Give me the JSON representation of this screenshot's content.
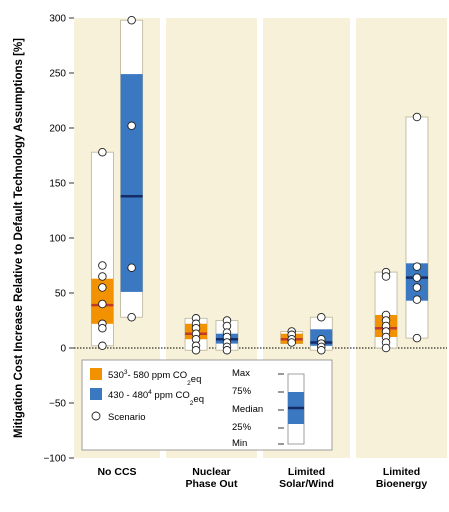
{
  "chart_data": {
    "type": "boxplot",
    "ylabel": "Mitigation Cost Increase Relative to Default Technology Assumptions [%]",
    "ylim": [
      -100,
      300
    ],
    "yticks": [
      -100,
      -50,
      0,
      50,
      100,
      150,
      200,
      250,
      300
    ],
    "categories": [
      "No CCS",
      "Nuclear Phase Out",
      "Limited Solar/Wind",
      "Limited Bioenergy"
    ],
    "category_lines": [
      [
        "No CCS"
      ],
      [
        "Nuclear",
        "Phase Out"
      ],
      [
        "Limited",
        "Solar/Wind"
      ],
      [
        "Limited",
        "Bioenergy"
      ]
    ],
    "series": [
      {
        "key": "s530",
        "name_prefix": "530",
        "name_sup": "3",
        "name_mid": "- 580  ppm CO",
        "name_sub": "2",
        "name_suffix": "eq",
        "color": "#f39200",
        "boxes": [
          {
            "min": 2,
            "q1": 22,
            "median": 39,
            "q3": 63,
            "max": 178,
            "points": [
              178,
              75,
              65,
              55,
              40,
              22,
              18,
              2
            ]
          },
          {
            "min": -2,
            "q1": 8,
            "median": 13,
            "q3": 22,
            "max": 27,
            "points": [
              27,
              22,
              18,
              13,
              8,
              2,
              -2
            ]
          },
          {
            "min": 4,
            "q1": 4,
            "median": 8,
            "q3": 13,
            "max": 15,
            "points": [
              15,
              12,
              8,
              5
            ]
          },
          {
            "min": 0,
            "q1": 10,
            "median": 18,
            "q3": 30,
            "max": 69,
            "points": [
              69,
              65,
              30,
              25,
              20,
              15,
              10,
              5,
              0
            ]
          }
        ]
      },
      {
        "key": "s430",
        "name_prefix": "430 - 480",
        "name_sup": "4",
        "name_mid": " ppm CO",
        "name_sub": "2",
        "name_suffix": "eq",
        "color": "#3b78c2",
        "boxes": [
          {
            "min": 28,
            "q1": 51,
            "median": 138,
            "q3": 249,
            "max": 298,
            "points": [
              298,
              202,
              73,
              28
            ]
          },
          {
            "min": -2,
            "q1": 4,
            "median": 8,
            "q3": 13,
            "max": 25,
            "points": [
              25,
              20,
              14,
              10,
              5,
              1,
              -2
            ]
          },
          {
            "min": -2,
            "q1": 2,
            "median": 5,
            "q3": 17,
            "max": 28,
            "points": [
              28,
              8,
              4,
              1,
              -2
            ]
          },
          {
            "min": 9,
            "q1": 43,
            "median": 64,
            "q3": 77,
            "max": 210,
            "points": [
              210,
              74,
              64,
              55,
              44,
              9
            ]
          }
        ]
      }
    ],
    "legend": {
      "scenario_label": "Scenario",
      "stat_labels": [
        "Max",
        "75%",
        "Median",
        "25%",
        "Min"
      ]
    }
  }
}
